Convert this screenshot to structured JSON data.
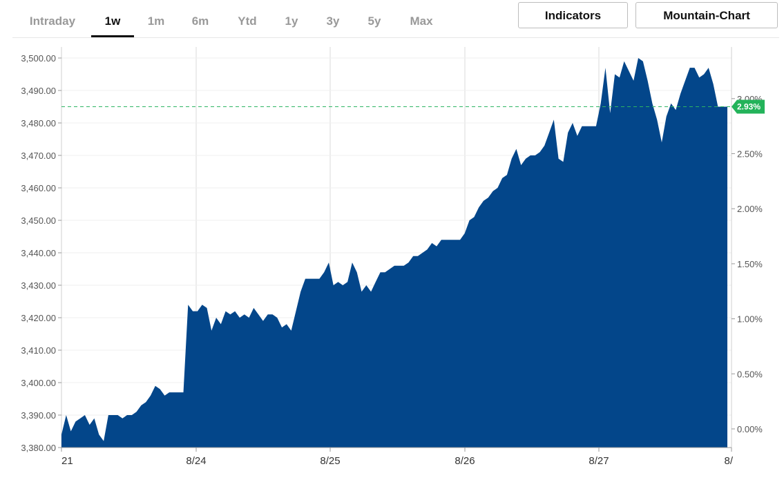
{
  "tabs": [
    {
      "label": "Intraday",
      "active": false
    },
    {
      "label": "1w",
      "active": true
    },
    {
      "label": "1m",
      "active": false
    },
    {
      "label": "6m",
      "active": false
    },
    {
      "label": "Ytd",
      "active": false
    },
    {
      "label": "1y",
      "active": false
    },
    {
      "label": "3y",
      "active": false
    },
    {
      "label": "5y",
      "active": false
    },
    {
      "label": "Max",
      "active": false
    }
  ],
  "buttons": {
    "indicators": "Indicators",
    "mountain_chart": "Mountain-Chart"
  },
  "colors": {
    "fill": "#03468a",
    "reference": "#2db463",
    "badge": "#23b35a"
  },
  "chart_data": {
    "type": "area",
    "left_axis": {
      "ticks": [
        "3,380.00",
        "3,390.00",
        "3,400.00",
        "3,410.00",
        "3,420.00",
        "3,430.00",
        "3,440.00",
        "3,450.00",
        "3,460.00",
        "3,470.00",
        "3,480.00",
        "3,490.00",
        "3,500.00"
      ],
      "range": [
        3380,
        3500
      ]
    },
    "right_axis": {
      "ticks": [
        "0.00%",
        "0.50%",
        "1.00%",
        "1.50%",
        "2.00%",
        "2.50%",
        "3.00%"
      ],
      "range_percent": [
        0,
        3.0
      ]
    },
    "x_ticks": [
      "21",
      "8/24",
      "8/25",
      "8/26",
      "8/27",
      "8/"
    ],
    "current_change": "2.93%",
    "reference_value": 3485,
    "values": [
      3384,
      3390,
      3385,
      3388,
      3389,
      3390,
      3387,
      3389,
      3384,
      3382,
      3390,
      3390,
      3390,
      3389,
      3390,
      3390,
      3391,
      3393,
      3394,
      3396,
      3399,
      3398,
      3396,
      3397,
      3397,
      3397,
      3397,
      3424,
      3422,
      3422,
      3424,
      3423,
      3416,
      3420,
      3418,
      3422,
      3421,
      3422,
      3420,
      3421,
      3420,
      3423,
      3421,
      3419,
      3421,
      3421,
      3420,
      3417,
      3418,
      3416,
      3422,
      3428,
      3432,
      3432,
      3432,
      3432,
      3434,
      3437,
      3430,
      3431,
      3430,
      3431,
      3437,
      3434,
      3428,
      3430,
      3428,
      3431,
      3434,
      3434,
      3435,
      3436,
      3436,
      3436,
      3437,
      3439,
      3439,
      3440,
      3441,
      3443,
      3442,
      3444,
      3444,
      3444,
      3444,
      3444,
      3446,
      3450,
      3451,
      3454,
      3456,
      3457,
      3459,
      3460,
      3463,
      3464,
      3469,
      3472,
      3467,
      3469,
      3470,
      3470,
      3471,
      3473,
      3477,
      3481,
      3469,
      3468,
      3477,
      3480,
      3476,
      3479,
      3479,
      3479,
      3479,
      3486,
      3497,
      3483,
      3495,
      3494,
      3499,
      3496,
      3493,
      3500,
      3499,
      3493,
      3486,
      3481,
      3474,
      3482,
      3486,
      3484,
      3489,
      3493,
      3497,
      3497,
      3494,
      3495,
      3497,
      3492,
      3485,
      3485,
      3485
    ]
  }
}
